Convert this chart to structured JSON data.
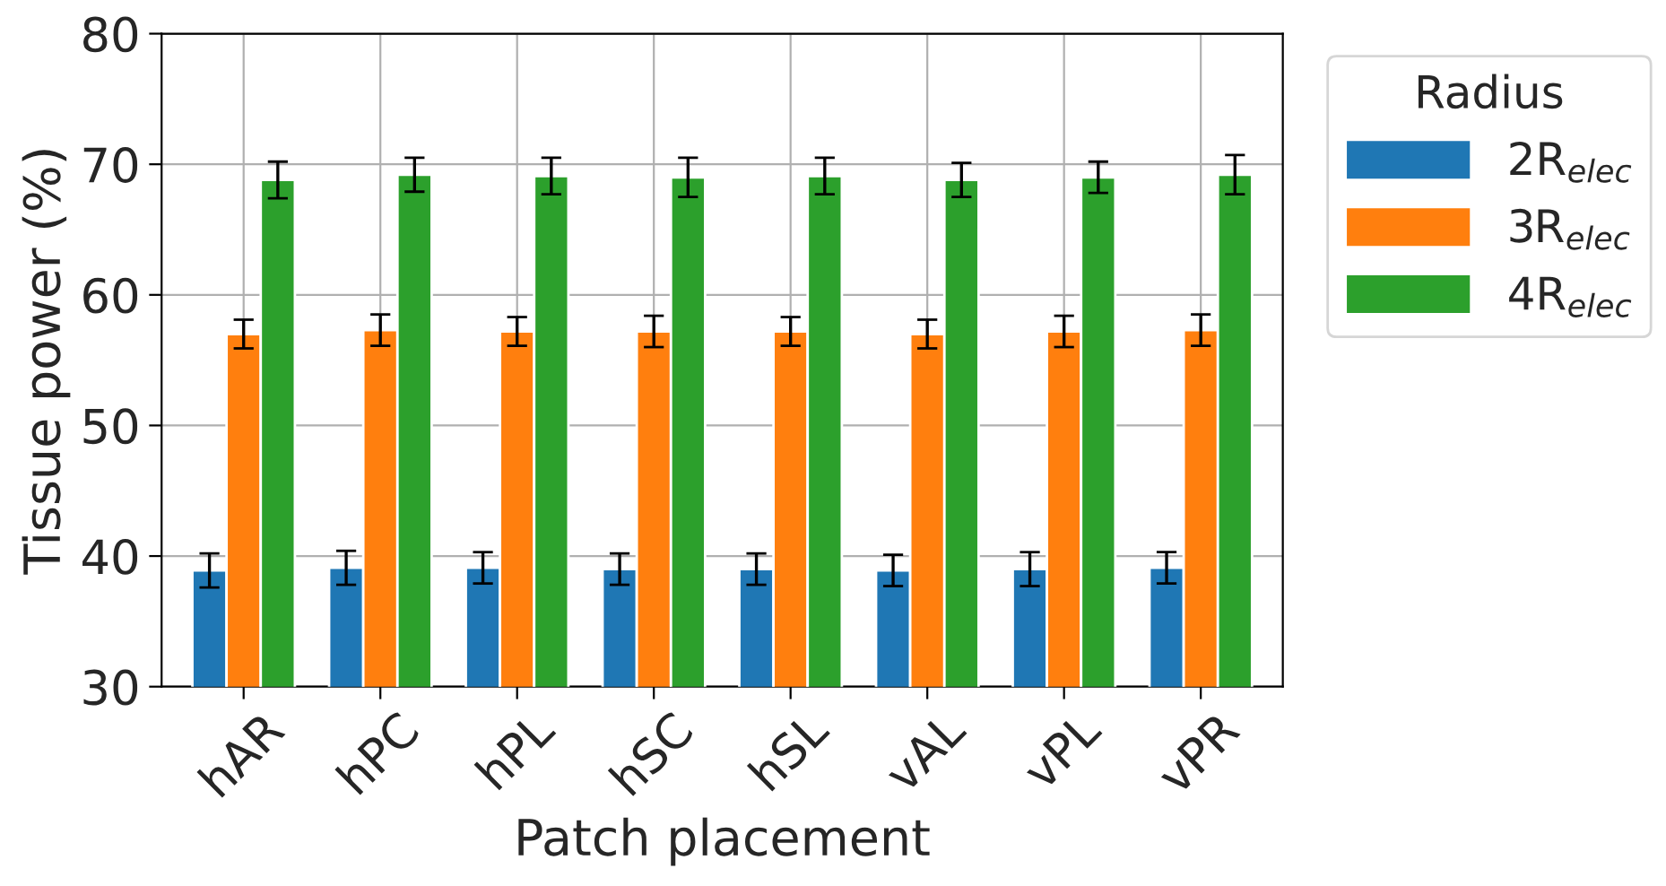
{
  "chart_data": {
    "type": "bar",
    "xlabel": "Patch placement",
    "ylabel": "Tissue power (%)",
    "legend_title": "Radius",
    "categories": [
      "hAR",
      "hPC",
      "hPL",
      "hSC",
      "hSL",
      "vAL",
      "vPL",
      "vPR"
    ],
    "series": [
      {
        "name": "2R$_{elec}$",
        "color": "#1f77b4",
        "values": [
          38.9,
          39.1,
          39.1,
          39.0,
          39.0,
          38.9,
          39.0,
          39.1
        ],
        "errors": [
          1.3,
          1.3,
          1.2,
          1.2,
          1.2,
          1.2,
          1.3,
          1.2
        ]
      },
      {
        "name": "3R$_{elec}$",
        "color": "#ff7f0e",
        "values": [
          57.0,
          57.3,
          57.2,
          57.2,
          57.2,
          57.0,
          57.2,
          57.3
        ],
        "errors": [
          1.1,
          1.2,
          1.1,
          1.2,
          1.1,
          1.1,
          1.2,
          1.2
        ]
      },
      {
        "name": "4R$_{elec}$",
        "color": "#2ca02c",
        "values": [
          68.8,
          69.2,
          69.1,
          69.0,
          69.1,
          68.8,
          69.0,
          69.2
        ],
        "errors": [
          1.4,
          1.3,
          1.4,
          1.5,
          1.4,
          1.3,
          1.2,
          1.5
        ]
      }
    ],
    "ylim": [
      30,
      80
    ],
    "yticks": [
      30,
      40,
      50,
      60,
      70,
      80
    ],
    "grid": true,
    "legend": "right"
  }
}
